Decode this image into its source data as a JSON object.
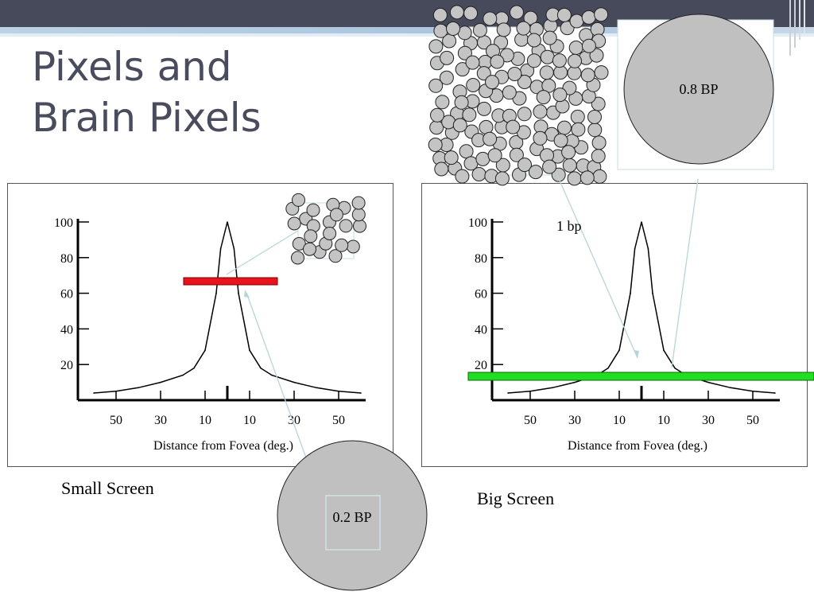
{
  "slide": {
    "title_line1": "Pixels and",
    "title_line2": "Brain Pixels",
    "caption_left": "Small Screen",
    "caption_right": "Big Screen",
    "label_one_bp": "1 bp",
    "label_big_circle": "0.8 BP",
    "label_small_circle": "0.2 BP"
  },
  "chart_data": [
    {
      "type": "line",
      "x_tick_labels": [
        "50",
        "30",
        "10",
        "10",
        "30",
        "50"
      ],
      "y_ticks": [
        20,
        40,
        60,
        80,
        100
      ],
      "xlabel": "Distance from Fovea (deg.)",
      "ylim": [
        0,
        100
      ],
      "x": [
        -60,
        -50,
        -40,
        -30,
        -20,
        -15,
        -10,
        -5,
        -3,
        0,
        3,
        5,
        10,
        15,
        20,
        30,
        40,
        50,
        60
      ],
      "values": [
        4,
        5,
        7,
        10,
        14,
        18,
        28,
        60,
        85,
        100,
        85,
        60,
        28,
        18,
        14,
        10,
        7,
        5,
        4
      ],
      "colors": {
        "screen_bar": "#e8141b"
      }
    },
    {
      "type": "line",
      "x_tick_labels": [
        "50",
        "30",
        "10",
        "10",
        "30",
        "50"
      ],
      "y_ticks": [
        20,
        40,
        60,
        80,
        100
      ],
      "xlabel": "Distance from Fovea (deg.)",
      "ylim": [
        0,
        100
      ],
      "x": [
        -60,
        -50,
        -40,
        -30,
        -20,
        -15,
        -10,
        -5,
        -3,
        0,
        3,
        5,
        10,
        15,
        20,
        30,
        40,
        50,
        60
      ],
      "values": [
        4,
        5,
        7,
        10,
        14,
        18,
        28,
        60,
        85,
        100,
        85,
        60,
        28,
        18,
        14,
        10,
        7,
        5,
        4
      ],
      "colors": {
        "screen_bar": "#22dd22"
      }
    }
  ]
}
